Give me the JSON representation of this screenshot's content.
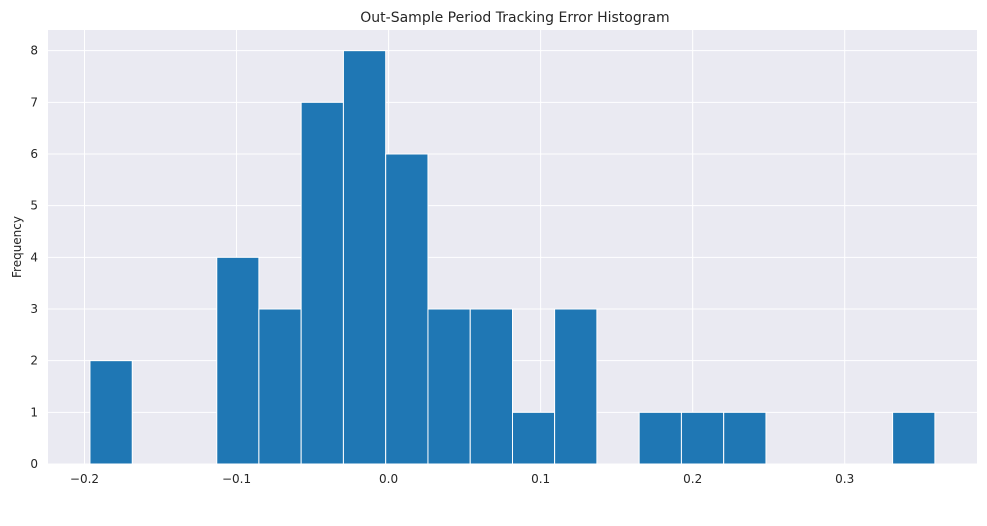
{
  "chart_data": {
    "type": "bar",
    "title": "Out-Sample Period Tracking Error Histogram",
    "xlabel": "",
    "ylabel": "Frequency",
    "bins": [
      {
        "x0": -0.1964,
        "x1": -0.1686,
        "count": 2
      },
      {
        "x0": -0.1686,
        "x1": -0.1408,
        "count": 0
      },
      {
        "x0": -0.1408,
        "x1": -0.113,
        "count": 0
      },
      {
        "x0": -0.113,
        "x1": -0.0853,
        "count": 4
      },
      {
        "x0": -0.0853,
        "x1": -0.0575,
        "count": 3
      },
      {
        "x0": -0.0575,
        "x1": -0.0297,
        "count": 7
      },
      {
        "x0": -0.0297,
        "x1": -0.0019,
        "count": 8
      },
      {
        "x0": -0.0019,
        "x1": 0.0259,
        "count": 6
      },
      {
        "x0": 0.0259,
        "x1": 0.0537,
        "count": 3
      },
      {
        "x0": 0.0537,
        "x1": 0.0815,
        "count": 3
      },
      {
        "x0": 0.0815,
        "x1": 0.1092,
        "count": 1
      },
      {
        "x0": 0.1092,
        "x1": 0.137,
        "count": 3
      },
      {
        "x0": 0.137,
        "x1": 0.1648,
        "count": 0
      },
      {
        "x0": 0.1648,
        "x1": 0.1926,
        "count": 1
      },
      {
        "x0": 0.1926,
        "x1": 0.2204,
        "count": 1
      },
      {
        "x0": 0.2204,
        "x1": 0.2482,
        "count": 1
      },
      {
        "x0": 0.2482,
        "x1": 0.2759,
        "count": 0
      },
      {
        "x0": 0.2759,
        "x1": 0.3037,
        "count": 0
      },
      {
        "x0": 0.3037,
        "x1": 0.3315,
        "count": 0
      },
      {
        "x0": 0.3315,
        "x1": 0.3593,
        "count": 1
      }
    ],
    "x_ticks": [
      -0.2,
      -0.1,
      0.0,
      0.1,
      0.2,
      0.3
    ],
    "x_tick_labels": [
      "−0.2",
      "−0.1",
      "0.0",
      "0.1",
      "0.2",
      "0.3"
    ],
    "y_ticks": [
      0,
      1,
      2,
      3,
      4,
      5,
      6,
      7,
      8
    ],
    "y_tick_labels": [
      "0",
      "1",
      "2",
      "3",
      "4",
      "5",
      "6",
      "7",
      "8"
    ],
    "xlim": [
      -0.224,
      0.387
    ],
    "ylim": [
      0,
      8.4
    ],
    "grid": true,
    "legend": "none",
    "colors": {
      "bar": "#1f77b4",
      "bar_edge": "#ffffff",
      "plot_background": "#eaeaf2",
      "grid": "#ffffff",
      "text": "#262626"
    }
  }
}
